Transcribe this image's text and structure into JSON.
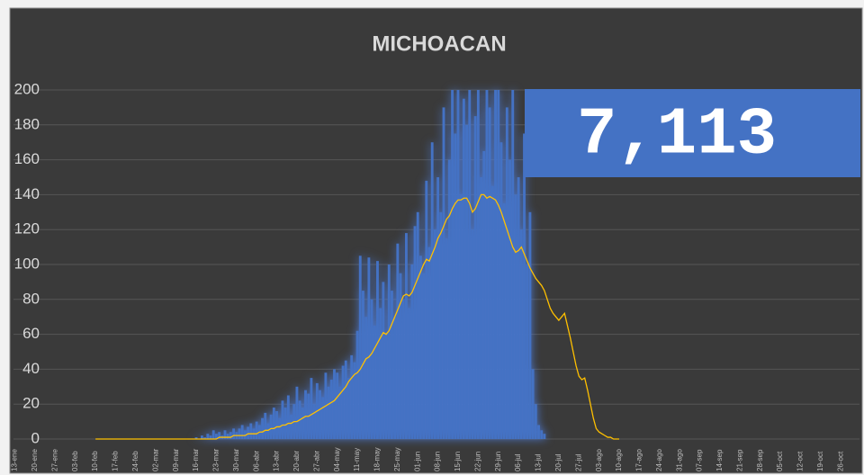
{
  "chart_data": {
    "type": "bar",
    "title": "MICHOACAN",
    "annotation": "7,113",
    "categories": [
      "13-ene",
      null,
      null,
      null,
      null,
      null,
      null,
      "20-ene",
      null,
      null,
      null,
      null,
      null,
      null,
      "27-ene",
      null,
      null,
      null,
      null,
      null,
      null,
      "03-feb",
      null,
      null,
      null,
      null,
      null,
      null,
      "10-feb",
      null,
      null,
      null,
      null,
      null,
      null,
      "17-feb",
      null,
      null,
      null,
      null,
      null,
      null,
      "24-feb",
      null,
      null,
      null,
      null,
      null,
      null,
      "02-mar",
      null,
      null,
      null,
      null,
      null,
      null,
      "09-mar",
      null,
      null,
      null,
      null,
      null,
      null,
      "16-mar",
      null,
      null,
      null,
      null,
      null,
      null,
      "23-mar",
      null,
      null,
      null,
      null,
      null,
      null,
      "30-mar",
      null,
      null,
      null,
      null,
      null,
      null,
      "06-abr",
      null,
      null,
      null,
      null,
      null,
      null,
      "13-abr",
      null,
      null,
      null,
      null,
      null,
      null,
      "20-abr",
      null,
      null,
      null,
      null,
      null,
      null,
      "27-abr",
      null,
      null,
      null,
      null,
      null,
      null,
      "04-may",
      null,
      null,
      null,
      null,
      null,
      null,
      "11-may",
      null,
      null,
      null,
      null,
      null,
      null,
      "18-may",
      null,
      null,
      null,
      null,
      null,
      null,
      "25-may",
      null,
      null,
      null,
      null,
      null,
      null,
      "01-jun",
      null,
      null,
      null,
      null,
      null,
      null,
      "08-jun",
      null,
      null,
      null,
      null,
      null,
      null,
      "15-jun",
      null,
      null,
      null,
      null,
      null,
      null,
      "22-jun",
      null,
      null,
      null,
      null,
      null,
      null,
      "29-jun",
      null,
      null,
      null,
      null,
      null,
      null,
      "06-jul",
      null,
      null,
      null,
      null,
      null,
      null,
      "13-jul",
      null,
      null,
      null,
      null,
      null,
      null,
      "20-jul",
      null,
      null,
      null,
      null,
      null,
      null,
      "27-jul",
      null,
      null,
      null,
      null,
      null,
      null,
      "03-ago",
      null,
      null,
      null,
      null,
      null,
      null,
      "10-ago",
      null,
      null,
      null,
      null,
      null,
      null,
      "17-ago",
      null,
      null,
      null,
      null,
      null,
      null,
      "24-ago",
      null,
      null,
      null,
      null,
      null,
      null,
      "31-ago",
      null,
      null,
      null,
      null,
      null,
      null,
      "07-sep",
      null,
      null,
      null,
      null,
      null,
      null,
      "14-sep",
      null,
      null,
      null,
      null,
      null,
      null,
      "21-sep",
      null,
      null,
      null,
      null,
      null,
      null,
      "28-sep",
      null,
      null,
      null,
      null,
      null,
      null,
      "05-oct",
      null,
      null,
      null,
      null,
      null,
      null,
      "12-oct",
      null,
      null,
      null,
      null,
      null,
      null,
      "19-oct",
      null,
      null,
      null,
      null,
      null,
      null,
      "26-oct",
      null,
      null,
      null,
      null,
      null,
      null
    ],
    "series": [
      {
        "color": "#4472c4",
        "values": [
          null,
          null,
          null,
          null,
          null,
          null,
          null,
          null,
          null,
          null,
          null,
          null,
          null,
          null,
          null,
          null,
          null,
          null,
          null,
          null,
          null,
          null,
          null,
          null,
          null,
          null,
          null,
          null,
          null,
          null,
          null,
          null,
          null,
          null,
          null,
          null,
          null,
          null,
          null,
          null,
          null,
          null,
          null,
          null,
          null,
          null,
          null,
          null,
          null,
          null,
          null,
          null,
          null,
          null,
          null,
          null,
          null,
          null,
          null,
          null,
          null,
          null,
          null,
          1,
          0,
          2,
          1,
          3,
          2,
          5,
          3,
          4,
          2,
          5,
          3,
          4,
          6,
          4,
          6,
          8,
          5,
          7,
          9,
          6,
          10,
          8,
          12,
          15,
          9,
          14,
          18,
          16,
          12,
          22,
          18,
          25,
          14,
          20,
          30,
          22,
          18,
          28,
          26,
          35,
          20,
          32,
          28,
          24,
          38,
          30,
          34,
          40,
          38,
          30,
          42,
          45,
          35,
          48,
          44,
          62,
          105,
          85,
          70,
          104,
          80,
          65,
          102,
          75,
          90,
          60,
          100,
          85,
          70,
          112,
          95,
          80,
          118,
          75,
          100,
          122,
          130,
          105,
          95,
          148,
          110,
          170,
          120,
          150,
          130,
          190,
          115,
          160,
          200,
          175,
          200,
          140,
          195,
          180,
          200,
          120,
          185,
          200,
          150,
          165,
          200,
          190,
          145,
          200,
          200,
          170,
          135,
          190,
          160,
          200,
          140,
          150,
          120,
          175,
          100,
          130,
          40,
          20,
          8,
          5,
          3,
          null,
          null,
          null,
          null,
          null,
          null,
          null,
          null,
          null,
          null,
          null,
          null,
          null,
          null,
          null,
          null,
          null,
          null,
          null,
          null,
          null,
          null,
          null,
          null,
          null,
          null,
          null,
          null,
          null,
          null,
          null,
          null,
          null,
          null,
          null,
          null,
          null,
          null,
          null,
          null,
          null,
          null,
          null,
          null,
          null,
          null,
          null,
          null,
          null,
          null,
          null,
          null,
          null,
          null,
          null,
          null,
          null,
          null,
          null,
          null,
          null,
          null,
          null,
          null,
          null,
          null,
          null,
          null,
          null,
          null,
          null,
          null,
          null,
          null,
          null,
          null,
          null,
          null,
          null,
          null,
          null,
          null,
          null,
          null,
          null,
          null,
          null,
          null,
          null,
          null,
          null,
          null,
          null,
          null,
          null,
          null,
          null,
          null,
          null,
          null,
          null,
          null,
          null,
          null,
          null,
          null,
          null,
          null,
          null
        ]
      },
      {
        "color": "#ffc000",
        "values": [
          null,
          null,
          null,
          null,
          null,
          null,
          null,
          null,
          null,
          null,
          null,
          null,
          null,
          null,
          null,
          null,
          null,
          null,
          null,
          null,
          null,
          null,
          null,
          null,
          null,
          null,
          null,
          null,
          0,
          0,
          0,
          0,
          0,
          0,
          0,
          0,
          0,
          0,
          0,
          0,
          0,
          0,
          0,
          0,
          0,
          0,
          0,
          0,
          0,
          0,
          0,
          0,
          0,
          0,
          0,
          0,
          0,
          0,
          0,
          0,
          0,
          0,
          0,
          0,
          0,
          0,
          0,
          0,
          0,
          0,
          0,
          1,
          1,
          1,
          1,
          1,
          2,
          2,
          2,
          2,
          2,
          3,
          3,
          3,
          3,
          4,
          4,
          5,
          5,
          6,
          6,
          7,
          7,
          8,
          8,
          9,
          9,
          10,
          10,
          11,
          12,
          13,
          13,
          14,
          15,
          16,
          17,
          18,
          19,
          20,
          21,
          22,
          24,
          26,
          28,
          30,
          33,
          35,
          37,
          38,
          40,
          43,
          46,
          47,
          49,
          52,
          55,
          58,
          61,
          60,
          62,
          66,
          70,
          74,
          78,
          82,
          83,
          82,
          84,
          88,
          92,
          96,
          100,
          103,
          102,
          106,
          110,
          115,
          118,
          122,
          126,
          128,
          132,
          135,
          137,
          137,
          138,
          138,
          135,
          130,
          132,
          136,
          140,
          140,
          138,
          139,
          138,
          137,
          134,
          130,
          125,
          120,
          115,
          110,
          107,
          108,
          110,
          106,
          102,
          98,
          95,
          92,
          90,
          88,
          85,
          80,
          75,
          72,
          70,
          68,
          70,
          72,
          65,
          58,
          50,
          42,
          36,
          34,
          35,
          28,
          20,
          12,
          6,
          4,
          3,
          2,
          1,
          1,
          0,
          0,
          0,
          null,
          null,
          null,
          null,
          null,
          null,
          null,
          null,
          null,
          null,
          null,
          null,
          null,
          null,
          null,
          null,
          null,
          null,
          null,
          null,
          null,
          null,
          null,
          null,
          null,
          null,
          null,
          null,
          null,
          null,
          null,
          null,
          null,
          null,
          null,
          null,
          null,
          null,
          null,
          null,
          null,
          null,
          null,
          null,
          null,
          null,
          null,
          null,
          null,
          null,
          null,
          null,
          null,
          null,
          null,
          null,
          null,
          null,
          null,
          null,
          null,
          null,
          null,
          null,
          null,
          null,
          null,
          null,
          null,
          null,
          null,
          null,
          null,
          null,
          null,
          null,
          null,
          null,
          null,
          null,
          null,
          null,
          null
        ]
      }
    ],
    "ylim": [
      0,
      200
    ],
    "yticks": [
      0,
      20,
      40,
      60,
      80,
      100,
      120,
      140,
      160,
      180,
      200
    ],
    "grid": true
  }
}
